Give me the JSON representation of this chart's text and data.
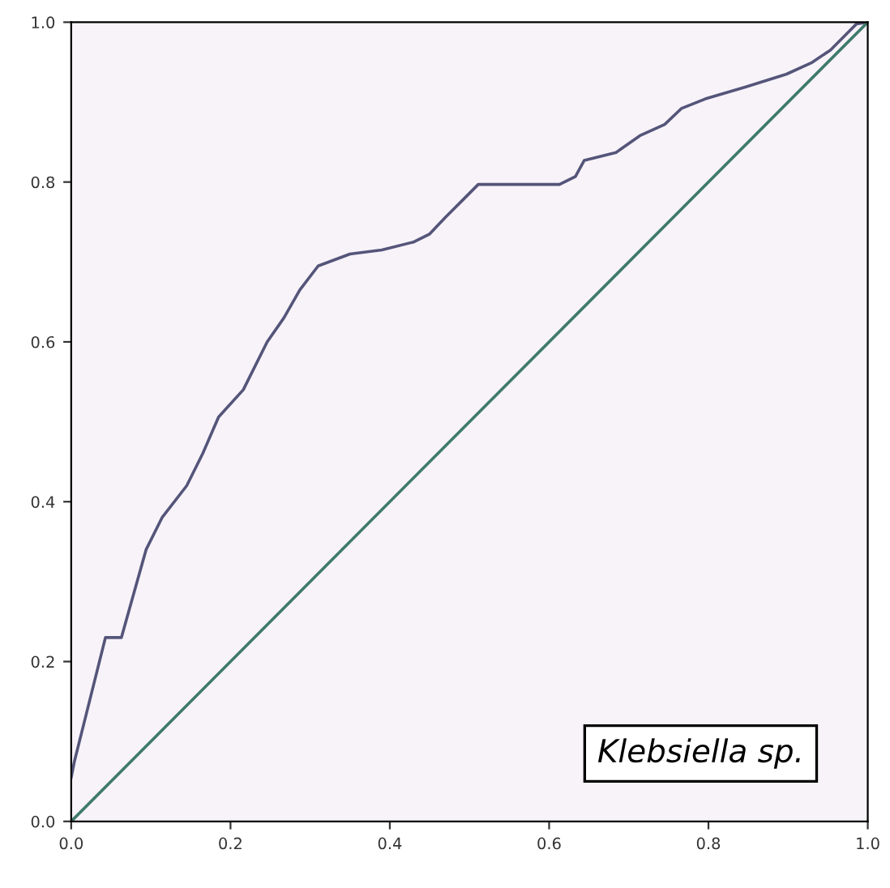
{
  "chart_data": {
    "type": "line",
    "series": [
      {
        "color": "#55557a",
        "x": [
          0,
          0.004,
          0.043,
          0.063,
          0.094,
          0.114,
          0.145,
          0.165,
          0.185,
          0.216,
          0.246,
          0.267,
          0.287,
          0.31,
          0.35,
          0.39,
          0.43,
          0.45,
          0.47,
          0.49,
          0.511,
          0.613,
          0.633,
          0.644,
          0.684,
          0.714,
          0.745,
          0.766,
          0.796,
          0.847,
          0.898,
          0.929,
          0.953,
          0.974,
          0.986,
          1.0
        ],
        "values": [
          0.055,
          0.075,
          0.23,
          0.23,
          0.34,
          0.38,
          0.42,
          0.46,
          0.506,
          0.54,
          0.6,
          0.63,
          0.665,
          0.695,
          0.71,
          0.715,
          0.725,
          0.735,
          0.756,
          0.776,
          0.797,
          0.797,
          0.807,
          0.827,
          0.837,
          0.858,
          0.872,
          0.892,
          0.904,
          0.919,
          0.935,
          0.949,
          0.965,
          0.986,
          0.998,
          1.0
        ]
      },
      {
        "color": "#3f7a6c",
        "x": [
          0,
          1.0
        ],
        "values": [
          0,
          1.0
        ]
      }
    ],
    "xlim": [
      0.0,
      1.0
    ],
    "ylim": [
      0.0,
      1.0
    ],
    "xticks": [
      {
        "value": 0,
        "label": "0.0"
      },
      0.2,
      0.4,
      0.6,
      0.8,
      {
        "value": 1,
        "label": "1.0"
      }
    ],
    "yticks": [
      {
        "value": 0,
        "label": "0.0"
      },
      0.2,
      0.4,
      0.6,
      0.8,
      {
        "value": 1,
        "label": "1.0"
      }
    ],
    "grid": false,
    "legend": false,
    "marker": "none",
    "line_style": "solid",
    "annotations": [
      "Klebsiella sp."
    ]
  }
}
